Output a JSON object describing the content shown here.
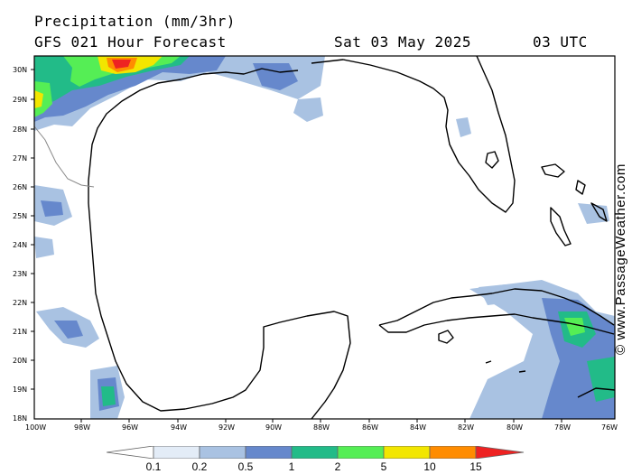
{
  "header": {
    "title": "Precipitation (mm/3hr)",
    "subtitle": "GFS 021 Hour Forecast",
    "date": "Sat 03 May 2025",
    "time": "03 UTC"
  },
  "credit": "© www.PassageWeather.com",
  "map": {
    "region": "Gulf of Mexico",
    "latitude_labels": [
      "30N",
      "29N",
      "28N",
      "27N",
      "26N",
      "25N",
      "24N",
      "23N",
      "22N",
      "21N",
      "20N",
      "19N",
      "18N"
    ],
    "longitude_labels": [
      "100W",
      "98W",
      "96W",
      "94W",
      "92W",
      "90W",
      "88W",
      "86W",
      "84W",
      "82W",
      "80W",
      "78W",
      "76W"
    ]
  },
  "legend": {
    "colors": [
      "#ffffff",
      "#e3ecf7",
      "#a9c2e2",
      "#6688cc",
      "#22bb88",
      "#55ee55",
      "#f2e600",
      "#ff8c00",
      "#ee2222"
    ],
    "labels": [
      "0.1",
      "0.2",
      "0.5",
      "1",
      "2",
      "5",
      "10",
      "15"
    ]
  }
}
